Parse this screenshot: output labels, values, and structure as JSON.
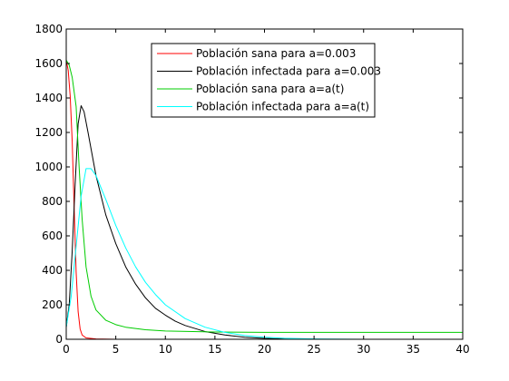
{
  "chart_data": {
    "type": "line",
    "title": "",
    "xlabel": "",
    "ylabel": "",
    "xlim": [
      0,
      40
    ],
    "ylim": [
      0,
      1800
    ],
    "xticks": [
      0,
      5,
      10,
      15,
      20,
      25,
      30,
      35,
      40
    ],
    "yticks": [
      0,
      200,
      400,
      600,
      800,
      1000,
      1200,
      1400,
      1600,
      1800
    ],
    "grid": false,
    "legend_position": "top-center",
    "series": [
      {
        "name": "Población sana para a=0.003",
        "color": "#ff0000",
        "points": [
          [
            0,
            1620
          ],
          [
            0.2,
            1560
          ],
          [
            0.4,
            1410
          ],
          [
            0.6,
            1150
          ],
          [
            0.8,
            760
          ],
          [
            1.0,
            390
          ],
          [
            1.2,
            160
          ],
          [
            1.4,
            60
          ],
          [
            1.6,
            25
          ],
          [
            2.0,
            8
          ],
          [
            3,
            2
          ],
          [
            5,
            0
          ],
          [
            10,
            0
          ],
          [
            20,
            0
          ],
          [
            40,
            0
          ]
        ]
      },
      {
        "name": "Población infectada para a=0.003",
        "color": "#000000",
        "points": [
          [
            0,
            70
          ],
          [
            0.3,
            200
          ],
          [
            0.6,
            510
          ],
          [
            0.9,
            900
          ],
          [
            1.2,
            1250
          ],
          [
            1.5,
            1355
          ],
          [
            1.8,
            1320
          ],
          [
            2.2,
            1200
          ],
          [
            3,
            950
          ],
          [
            4,
            720
          ],
          [
            5,
            555
          ],
          [
            6,
            420
          ],
          [
            7,
            320
          ],
          [
            8,
            240
          ],
          [
            9,
            180
          ],
          [
            10,
            140
          ],
          [
            11,
            105
          ],
          [
            12,
            80
          ],
          [
            14,
            45
          ],
          [
            16,
            25
          ],
          [
            18,
            12
          ],
          [
            20,
            5
          ],
          [
            22,
            2
          ],
          [
            25,
            0
          ],
          [
            40,
            0
          ]
        ]
      },
      {
        "name": "Población sana para a=a(t)",
        "color": "#00cc00",
        "points": [
          [
            0,
            1620
          ],
          [
            0.3,
            1590
          ],
          [
            0.6,
            1520
          ],
          [
            1.0,
            1350
          ],
          [
            1.3,
            1000
          ],
          [
            1.6,
            700
          ],
          [
            2.0,
            420
          ],
          [
            2.5,
            250
          ],
          [
            3,
            170
          ],
          [
            4,
            110
          ],
          [
            5,
            85
          ],
          [
            6,
            70
          ],
          [
            8,
            55
          ],
          [
            10,
            48
          ],
          [
            15,
            42
          ],
          [
            20,
            40
          ],
          [
            30,
            40
          ],
          [
            40,
            40
          ]
        ]
      },
      {
        "name": "Población infectada para a=a(t)",
        "color": "#00ffff",
        "points": [
          [
            0,
            70
          ],
          [
            0.5,
            250
          ],
          [
            1.0,
            540
          ],
          [
            1.5,
            830
          ],
          [
            2.0,
            990
          ],
          [
            2.5,
            990
          ],
          [
            3,
            950
          ],
          [
            4,
            810
          ],
          [
            5,
            660
          ],
          [
            6,
            530
          ],
          [
            7,
            420
          ],
          [
            8,
            330
          ],
          [
            9,
            260
          ],
          [
            10,
            200
          ],
          [
            12,
            120
          ],
          [
            14,
            70
          ],
          [
            16,
            40
          ],
          [
            18,
            22
          ],
          [
            20,
            12
          ],
          [
            22,
            6
          ],
          [
            25,
            2
          ],
          [
            30,
            0
          ],
          [
            40,
            0
          ]
        ]
      }
    ]
  }
}
